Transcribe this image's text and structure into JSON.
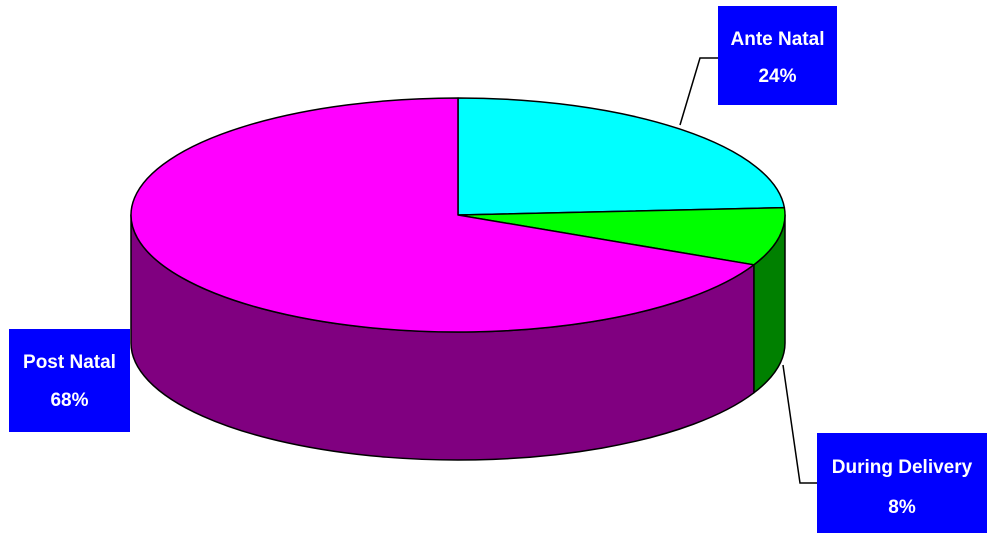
{
  "chart_data": {
    "type": "pie",
    "style": "3d",
    "slices": [
      {
        "name": "Ante Natal",
        "value": 24,
        "pct_label": "24%",
        "top_color": "#00FFFF",
        "side_color": "#008080"
      },
      {
        "name": "During Delivery",
        "value": 8,
        "pct_label": "8%",
        "top_color": "#00FF00",
        "side_color": "#008000"
      },
      {
        "name": "Post Natal",
        "value": 68,
        "pct_label": "68%",
        "top_color": "#FF00FF",
        "side_color": "#800080"
      }
    ],
    "label_box_color": "#0000FF",
    "label_text_color": "#FFFFFF",
    "legend": "none"
  }
}
